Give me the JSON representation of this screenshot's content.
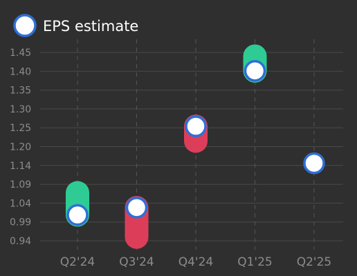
{
  "chart_data": {
    "type": "scatter",
    "title": "",
    "xlabel": "",
    "ylabel": "",
    "legend": {
      "position": "top-left",
      "entries": [
        "EPS estimate"
      ]
    },
    "categories": [
      "Q2'24",
      "Q3'24",
      "Q4'24",
      "Q1'25",
      "Q2'25"
    ],
    "y_ticks": [
      "0.94",
      "0.99",
      "1.04",
      "1.09",
      "1.14",
      "1.20",
      "1.25",
      "1.30",
      "1.35",
      "1.40",
      "1.45"
    ],
    "ylim": [
      0.92,
      1.47
    ],
    "grid": {
      "horizontal": true,
      "vertical_dashed": true
    },
    "series": [
      {
        "name": "EPS estimate",
        "values": [
          1.01,
          1.03,
          1.25,
          1.4,
          1.15
        ]
      },
      {
        "values": [
          1.07,
          0.95,
          1.21,
          1.44,
          null
        ]
      }
    ],
    "colors": {
      "background": "#2f2f2f",
      "beat": "#2ecc94",
      "miss": "#dc3e5a",
      "marker_fill": "#ffffff",
      "marker_stroke": "#2f6fd6"
    }
  }
}
